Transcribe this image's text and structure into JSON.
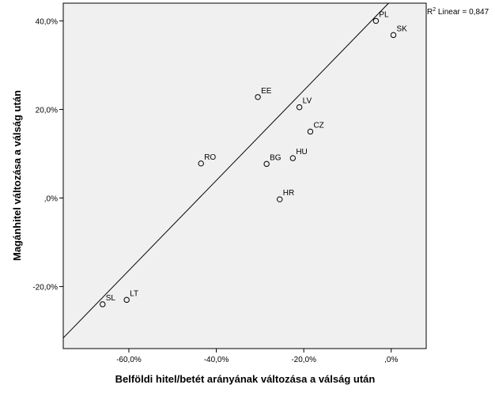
{
  "chart_data": {
    "type": "scatter",
    "xlabel": "Belföldi hitel/betét arányának változása a válság után",
    "ylabel": "Magánhitel változása a válság után",
    "xlim": [
      -75,
      8
    ],
    "ylim": [
      -34,
      44
    ],
    "xticks": [
      {
        "value": -60,
        "label": "-60,0%"
      },
      {
        "value": -40,
        "label": "-40,0%"
      },
      {
        "value": -20,
        "label": "-20,0%"
      },
      {
        "value": 0,
        "label": ",0%"
      }
    ],
    "yticks": [
      {
        "value": 40,
        "label": "40,0%"
      },
      {
        "value": 20,
        "label": "20,0%"
      },
      {
        "value": 0,
        "label": ",0%"
      },
      {
        "value": -20,
        "label": "-20,0%"
      }
    ],
    "points": [
      {
        "label": "PL",
        "x": -3.5,
        "y": 40.0
      },
      {
        "label": "SK",
        "x": 0.5,
        "y": 36.8
      },
      {
        "label": "EE",
        "x": -30.5,
        "y": 22.8
      },
      {
        "label": "LV",
        "x": -21.0,
        "y": 20.5
      },
      {
        "label": "CZ",
        "x": -18.5,
        "y": 15.0
      },
      {
        "label": "RO",
        "x": -43.5,
        "y": 7.8
      },
      {
        "label": "BG",
        "x": -28.5,
        "y": 7.7
      },
      {
        "label": "HU",
        "x": -22.5,
        "y": 9.0
      },
      {
        "label": "HR",
        "x": -25.5,
        "y": -0.3
      },
      {
        "label": "LT",
        "x": -60.5,
        "y": -23.0
      },
      {
        "label": "SL",
        "x": -66.0,
        "y": -24.0
      }
    ],
    "fit_line": {
      "x": [
        -75,
        -0.6
      ],
      "y": [
        -31.6,
        44
      ]
    },
    "annotation": {
      "prefix": "R",
      "sup": "2",
      "suffix": " Linear = 0,847"
    },
    "grid": false
  }
}
